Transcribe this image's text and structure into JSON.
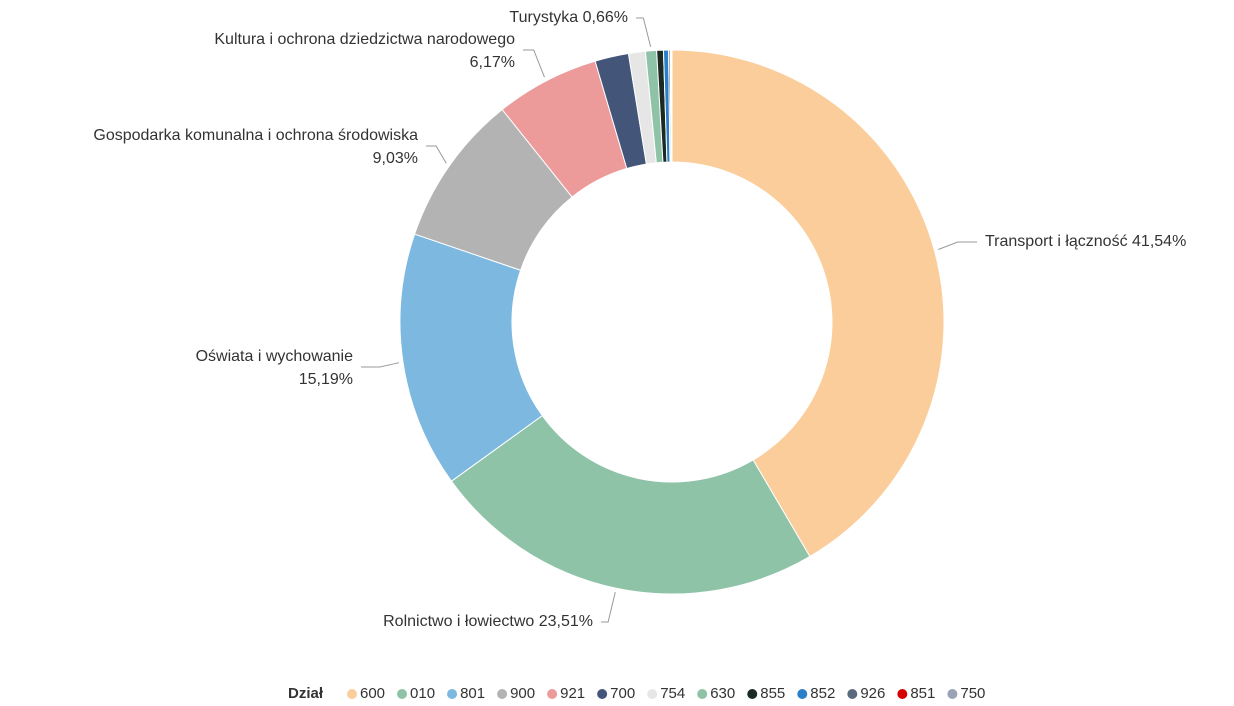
{
  "chart_data": {
    "type": "donut",
    "legend_title": "Dział",
    "categories": [
      "600",
      "010",
      "801",
      "900",
      "921",
      "700",
      "754",
      "630",
      "855",
      "852",
      "926",
      "851",
      "750"
    ],
    "slice_names": [
      "Transport i łączność",
      "Rolnictwo i łowiectwo",
      "Oświata i wychowanie",
      "Gospodarka komunalna i ochrona środowiska",
      "Kultura i ochrona dziedzictwa narodowego",
      null,
      null,
      "Turystyka",
      null,
      null,
      null,
      null,
      null
    ],
    "values": [
      41.54,
      23.51,
      15.19,
      9.03,
      6.17,
      2.0,
      1.0,
      0.66,
      0.4,
      0.3,
      0.1,
      0.05,
      0.05
    ],
    "value_labels": [
      "41,54%",
      "23,51%",
      "15,19%",
      "9,03%",
      "6,17%",
      null,
      null,
      "0,66%",
      null,
      null,
      null,
      null,
      null
    ],
    "colors": [
      "#fbcd9b",
      "#8ec3a7",
      "#7cb8e0",
      "#b3b3b3",
      "#ed9a9a",
      "#44557a",
      "#e6e6e6",
      "#8ec3a7",
      "#1b2a23",
      "#2a7fc9",
      "#5c6a80",
      "#d40000",
      "#9aa3b5"
    ],
    "legend": "bottom"
  }
}
